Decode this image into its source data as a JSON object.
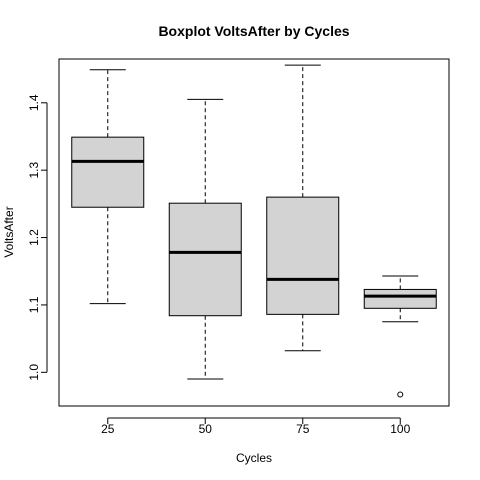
{
  "chart_data": {
    "type": "boxplot",
    "title": "Boxplot VoltsAfter by Cycles",
    "xlabel": "Cycles",
    "ylabel": "VoltsAfter",
    "categories": [
      "25",
      "50",
      "75",
      "100"
    ],
    "ylim": [
      0.95,
      1.465
    ],
    "yticks": [
      1.0,
      1.1,
      1.2,
      1.3,
      1.4
    ],
    "ytick_labels": [
      "1.0",
      "1.1",
      "1.2",
      "1.3",
      "1.4"
    ],
    "boxes": [
      {
        "category": "25",
        "whisker_low": 1.102,
        "q1": 1.245,
        "median": 1.313,
        "q3": 1.349,
        "whisker_high": 1.449,
        "outliers": []
      },
      {
        "category": "50",
        "whisker_low": 0.99,
        "q1": 1.084,
        "median": 1.178,
        "q3": 1.251,
        "whisker_high": 1.405,
        "outliers": []
      },
      {
        "category": "75",
        "whisker_low": 1.032,
        "q1": 1.086,
        "median": 1.138,
        "q3": 1.26,
        "whisker_high": 1.456,
        "outliers": []
      },
      {
        "category": "100",
        "whisker_low": 1.075,
        "q1": 1.095,
        "median": 1.113,
        "q3": 1.123,
        "whisker_high": 1.143,
        "outliers": [
          0.967
        ]
      }
    ],
    "box_fill": "#d3d3d3",
    "line_color": "#000000",
    "grid": false,
    "legend": "none"
  }
}
